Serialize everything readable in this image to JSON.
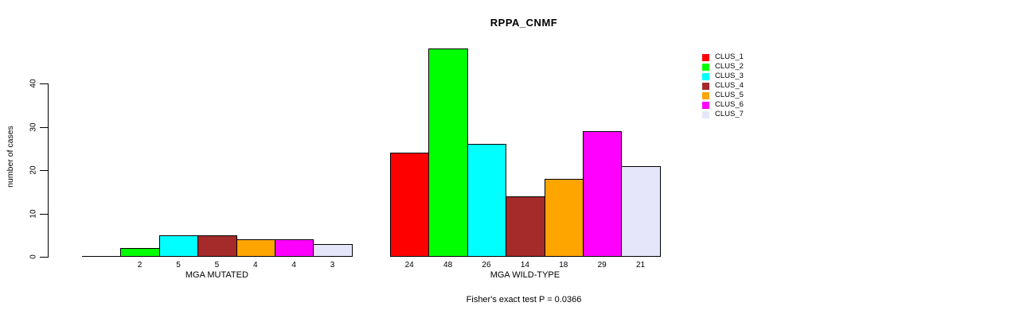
{
  "chart_data": {
    "type": "bar",
    "title": "RPPA_CNMF",
    "ylabel": "number of cases",
    "yticks": [
      0,
      10,
      20,
      30,
      40
    ],
    "ylim": [
      0,
      48
    ],
    "grid": false,
    "legend_position": "right-inside",
    "categories": [
      "MGA MUTATED",
      "MGA WILD-TYPE"
    ],
    "series": [
      {
        "name": "CLUS_1",
        "color": "#FF0000",
        "values": [
          0,
          24
        ]
      },
      {
        "name": "CLUS_2",
        "color": "#00FF00",
        "values": [
          2,
          48
        ]
      },
      {
        "name": "CLUS_3",
        "color": "#00FFFF",
        "values": [
          5,
          26
        ]
      },
      {
        "name": "CLUS_4",
        "color": "#A52A2A",
        "values": [
          5,
          14
        ]
      },
      {
        "name": "CLUS_5",
        "color": "#FFA500",
        "values": [
          4,
          18
        ]
      },
      {
        "name": "CLUS_6",
        "color": "#FF00FF",
        "values": [
          4,
          29
        ]
      },
      {
        "name": "CLUS_7",
        "color": "#E6E6FA",
        "values": [
          3,
          21
        ]
      }
    ],
    "bar_value_labels": "shown under each bar, hidden when value is 0",
    "annotation": "Fisher's exact test P = 0.0366"
  }
}
